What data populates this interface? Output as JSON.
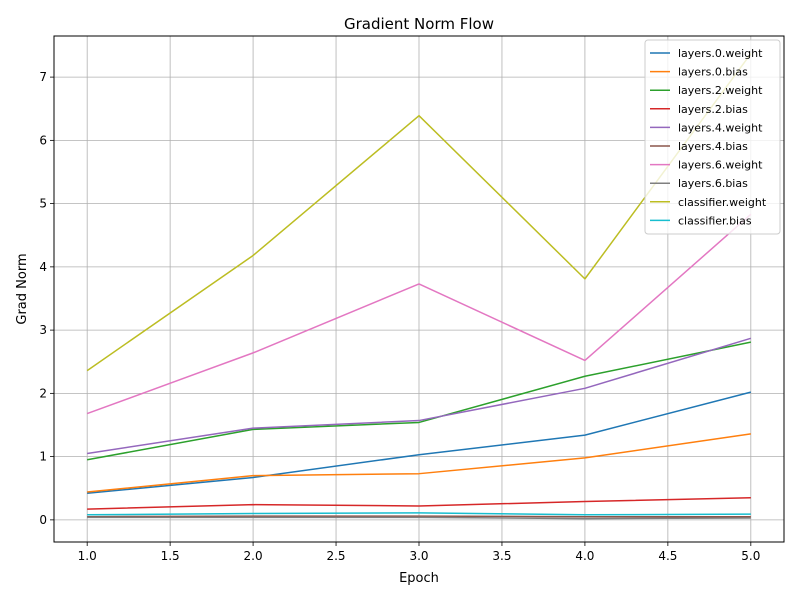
{
  "chart_data": {
    "type": "line",
    "title": "Gradient Norm Flow",
    "xlabel": "Epoch",
    "ylabel": "Grad Norm",
    "x": [
      1,
      2,
      3,
      4,
      5
    ],
    "xlim": [
      0.8,
      5.2
    ],
    "ylim": [
      -0.35,
      7.65
    ],
    "xticks": [
      1.0,
      1.5,
      2.0,
      2.5,
      3.0,
      3.5,
      4.0,
      4.5,
      5.0
    ],
    "xtick_labels": [
      "1.0",
      "1.5",
      "2.0",
      "2.5",
      "3.0",
      "3.5",
      "4.0",
      "4.5",
      "5.0"
    ],
    "yticks": [
      0,
      1,
      2,
      3,
      4,
      5,
      6,
      7
    ],
    "ytick_labels": [
      "0",
      "1",
      "2",
      "3",
      "4",
      "5",
      "6",
      "7"
    ],
    "grid": true,
    "legend_position": "top-right",
    "series": [
      {
        "name": "layers.0.weight",
        "color": "#1f77b4",
        "values": [
          0.42,
          0.67,
          1.03,
          1.34,
          2.02
        ]
      },
      {
        "name": "layers.0.bias",
        "color": "#ff7f0e",
        "values": [
          0.44,
          0.7,
          0.73,
          0.98,
          1.36
        ]
      },
      {
        "name": "layers.2.weight",
        "color": "#2ca02c",
        "values": [
          0.95,
          1.43,
          1.54,
          2.27,
          2.81
        ]
      },
      {
        "name": "layers.2.bias",
        "color": "#d62728",
        "values": [
          0.17,
          0.24,
          0.22,
          0.29,
          0.35
        ]
      },
      {
        "name": "layers.4.weight",
        "color": "#9467bd",
        "values": [
          1.05,
          1.45,
          1.57,
          2.08,
          2.87
        ]
      },
      {
        "name": "layers.4.bias",
        "color": "#8c564b",
        "values": [
          0.05,
          0.06,
          0.06,
          0.05,
          0.05
        ]
      },
      {
        "name": "layers.6.weight",
        "color": "#e377c2",
        "values": [
          1.68,
          2.64,
          3.73,
          2.52,
          4.83
        ]
      },
      {
        "name": "layers.6.bias",
        "color": "#7f7f7f",
        "values": [
          0.04,
          0.04,
          0.04,
          0.02,
          0.03
        ]
      },
      {
        "name": "classifier.weight",
        "color": "#bcbd22",
        "values": [
          2.36,
          4.18,
          6.39,
          3.81,
          7.37
        ]
      },
      {
        "name": "classifier.bias",
        "color": "#17becf",
        "values": [
          0.08,
          0.1,
          0.11,
          0.08,
          0.09
        ]
      }
    ]
  }
}
